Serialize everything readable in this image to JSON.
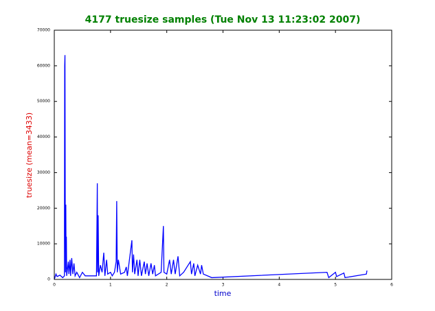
{
  "chart_data": {
    "type": "line",
    "title": "4177 truesize samples (Tue Nov 13 11:23:02 2007)",
    "xlabel": "time",
    "ylabel": "truesize (mean=3433)",
    "x": [
      0,
      0.03,
      0.05,
      0.1,
      0.15,
      0.18,
      0.185,
      0.19,
      0.195,
      0.2,
      0.205,
      0.21,
      0.215,
      0.22,
      0.25,
      0.26,
      0.28,
      0.29,
      0.31,
      0.33,
      0.35,
      0.37,
      0.4,
      0.45,
      0.5,
      0.55,
      0.75,
      0.76,
      0.765,
      0.77,
      0.78,
      0.79,
      0.82,
      0.85,
      0.88,
      0.9,
      0.93,
      0.95,
      1.0,
      1.03,
      1.07,
      1.1,
      1.11,
      1.12,
      1.14,
      1.18,
      1.25,
      1.28,
      1.3,
      1.38,
      1.39,
      1.41,
      1.43,
      1.47,
      1.49,
      1.52,
      1.55,
      1.6,
      1.62,
      1.65,
      1.68,
      1.72,
      1.75,
      1.78,
      1.8,
      1.9,
      1.94,
      1.95,
      2.0,
      2.05,
      2.08,
      2.12,
      2.15,
      2.2,
      2.23,
      2.3,
      2.42,
      2.44,
      2.48,
      2.5,
      2.55,
      2.6,
      2.62,
      2.65,
      2.8,
      4.85,
      4.88,
      5.0,
      5.02,
      5.15,
      5.17,
      5.55,
      5.56
    ],
    "series": [
      {
        "name": "truesize",
        "color": "#0000ff",
        "values": [
          0,
          1500,
          800,
          1200,
          500,
          1000,
          60000,
          63000,
          20000,
          2000,
          21000,
          3000,
          12000,
          1000,
          5000,
          1500,
          5500,
          1000,
          6000,
          1500,
          4500,
          1000,
          2000,
          500,
          2000,
          1000,
          1000,
          18000,
          27000,
          2000,
          18000,
          1000,
          4000,
          2000,
          7500,
          1000,
          5500,
          1500,
          2000,
          1000,
          2000,
          5000,
          22000,
          2000,
          5500,
          1500,
          2000,
          3500,
          1000,
          11000,
          2000,
          7000,
          1500,
          5500,
          1000,
          5500,
          1000,
          5000,
          1500,
          4500,
          1000,
          4500,
          1500,
          4000,
          1000,
          2000,
          15000,
          2000,
          1500,
          5500,
          1500,
          5500,
          1500,
          6500,
          1000,
          2000,
          5000,
          1500,
          4500,
          1000,
          4000,
          1500,
          4000,
          1500,
          500,
          2000,
          500,
          2000,
          800,
          1800,
          500,
          1500,
          2500
        ]
      }
    ],
    "xlim": [
      0,
      6
    ],
    "xticks": [
      0,
      1,
      2,
      3,
      4,
      5,
      6
    ],
    "ylim": [
      0,
      70000
    ],
    "yticks": [
      0,
      10000,
      20000,
      30000,
      40000,
      50000,
      60000,
      70000
    ],
    "grid": false
  }
}
